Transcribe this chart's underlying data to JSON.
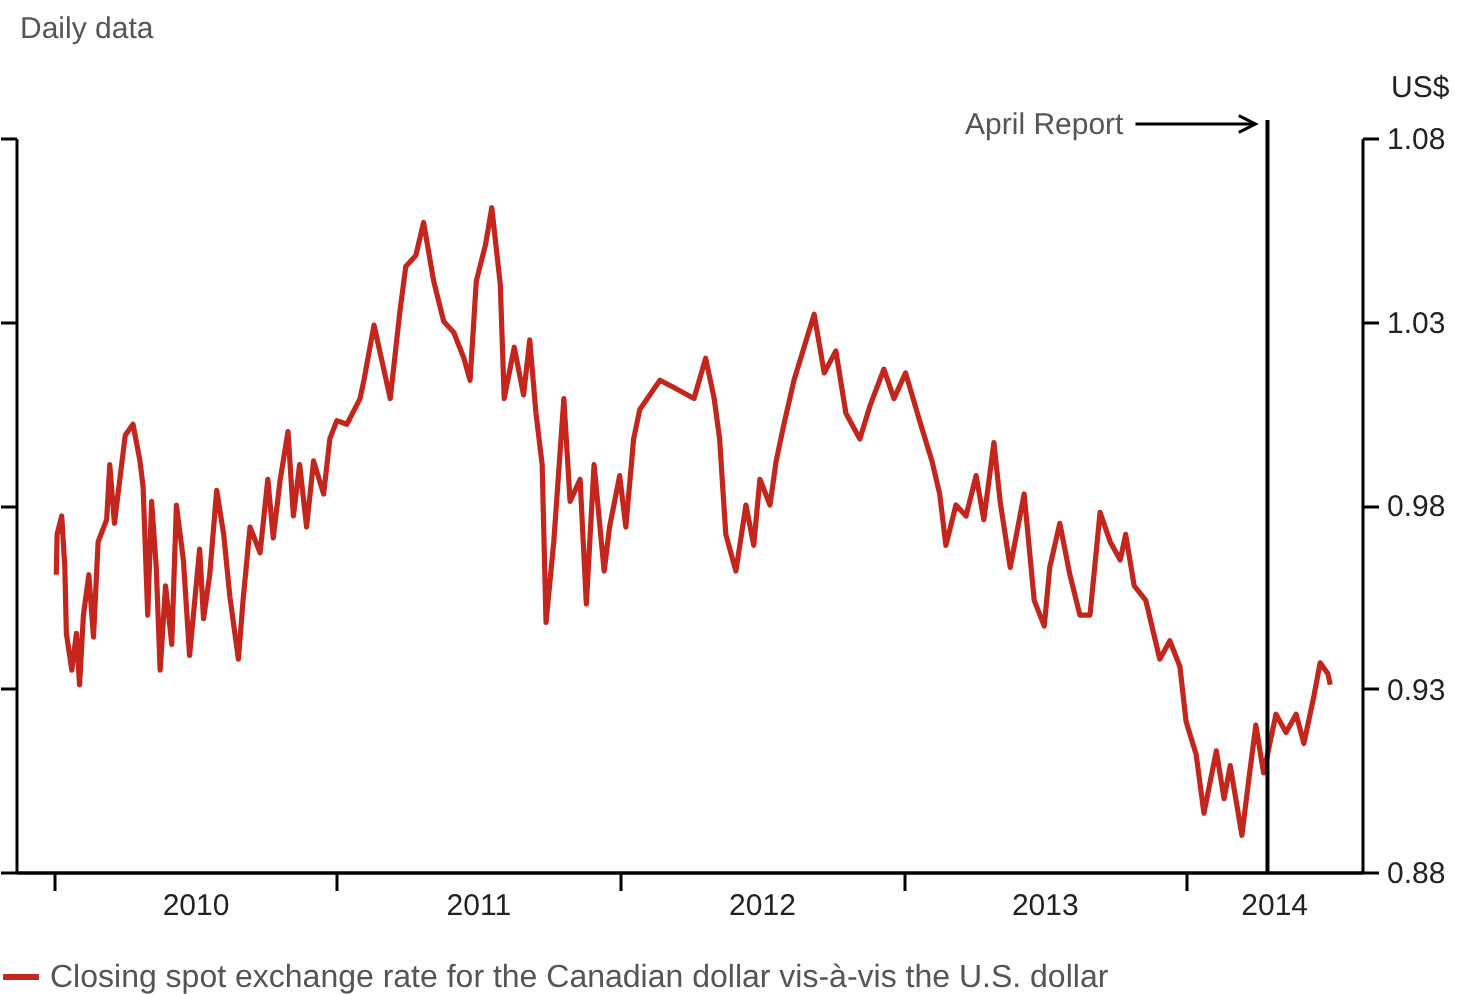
{
  "chart_data": {
    "type": "line",
    "subtitle": "Daily data",
    "ylabel": "US$",
    "x": [
      "2010-01-04",
      "2010-01-05",
      "2010-01-11",
      "2010-01-15",
      "2010-01-17",
      "2010-01-24",
      "2010-01-30",
      "2010-02-03",
      "2010-02-08",
      "2010-02-15",
      "2010-02-21",
      "2010-02-27",
      "2010-03-10",
      "2010-03-14",
      "2010-03-20",
      "2010-03-27",
      "2010-04-03",
      "2010-04-13",
      "2010-04-22",
      "2010-04-26",
      "2010-05-02",
      "2010-05-07",
      "2010-05-13",
      "2010-05-18",
      "2010-05-25",
      "2010-06-02",
      "2010-06-08",
      "2010-06-17",
      "2010-06-25",
      "2010-07-08",
      "2010-07-13",
      "2010-07-21",
      "2010-07-30",
      "2010-08-08",
      "2010-08-16",
      "2010-08-27",
      "2010-09-02",
      "2010-09-11",
      "2010-09-24",
      "2010-10-04",
      "2010-10-11",
      "2010-10-20",
      "2010-10-30",
      "2010-11-06",
      "2010-11-14",
      "2010-11-23",
      "2010-12-02",
      "2010-12-15",
      "2010-12-23",
      "2011-01-01",
      "2011-01-14",
      "2011-01-31",
      "2011-02-05",
      "2011-02-18",
      "2011-03-11",
      "2011-03-23",
      "2011-03-31",
      "2011-04-13",
      "2011-04-23",
      "2011-05-06",
      "2011-05-19",
      "2011-06-01",
      "2011-06-14",
      "2011-06-22",
      "2011-06-30",
      "2011-07-12",
      "2011-07-20",
      "2011-07-31",
      "2011-08-05",
      "2011-08-18",
      "2011-08-30",
      "2011-09-07",
      "2011-09-15",
      "2011-09-23",
      "2011-09-28",
      "2011-10-08",
      "2011-10-21",
      "2011-10-29",
      "2011-11-11",
      "2011-11-19",
      "2011-11-29",
      "2011-12-12",
      "2011-12-19",
      "2012-01-01",
      "2012-01-09",
      "2012-01-19",
      "2012-01-27",
      "2012-02-22",
      "2012-03-11",
      "2012-04-06",
      "2012-04-21",
      "2012-05-02",
      "2012-05-09",
      "2012-05-17",
      "2012-05-30",
      "2012-06-12",
      "2012-06-22",
      "2012-06-30",
      "2012-07-13",
      "2012-07-21",
      "2012-07-31",
      "2012-08-13",
      "2012-09-08",
      "2012-09-21",
      "2012-10-06",
      "2012-10-19",
      "2012-11-06",
      "2012-11-19",
      "2012-12-07",
      "2012-12-20",
      "2013-01-04",
      "2013-01-22",
      "2013-02-07",
      "2013-02-17",
      "2013-02-25",
      "2013-03-10",
      "2013-03-23",
      "2013-04-05",
      "2013-04-15",
      "2013-04-28",
      "2013-05-06",
      "2013-05-19",
      "2013-06-06",
      "2013-06-19",
      "2013-07-02",
      "2013-07-09",
      "2013-07-22",
      "2013-08-04",
      "2013-08-17",
      "2013-08-30",
      "2013-09-12",
      "2013-09-25",
      "2013-10-08",
      "2013-10-15",
      "2013-10-26",
      "2013-11-10",
      "2013-11-28",
      "2013-12-11",
      "2013-12-24",
      "2014-01-01",
      "2014-01-14",
      "2014-01-24",
      "2014-02-09",
      "2014-02-19",
      "2014-02-27",
      "2014-03-14",
      "2014-03-24",
      "2014-04-01",
      "2014-04-11",
      "2014-04-27",
      "2014-05-10",
      "2014-05-23",
      "2014-06-02",
      "2014-06-15",
      "2014-06-23",
      "2014-07-03",
      "2014-07-06"
    ],
    "series": [
      {
        "name": "Closing spot exchange rate for the Canadian dollar vis-à-vis the U.S. dollar",
        "color": "#c4261d",
        "values": [
          0.961,
          0.972,
          0.977,
          0.963,
          0.945,
          0.935,
          0.945,
          0.931,
          0.95,
          0.961,
          0.944,
          0.97,
          0.976,
          0.991,
          0.975,
          0.987,
          0.999,
          1.002,
          0.992,
          0.985,
          0.95,
          0.981,
          0.963,
          0.935,
          0.958,
          0.942,
          0.98,
          0.965,
          0.939,
          0.968,
          0.949,
          0.961,
          0.984,
          0.972,
          0.955,
          0.938,
          0.954,
          0.974,
          0.967,
          0.987,
          0.971,
          0.987,
          1.0,
          0.977,
          0.991,
          0.974,
          0.992,
          0.983,
          0.998,
          1.003,
          1.002,
          1.009,
          1.014,
          1.029,
          1.009,
          1.032,
          1.045,
          1.048,
          1.057,
          1.041,
          1.03,
          1.027,
          1.02,
          1.014,
          1.041,
          1.051,
          1.061,
          1.04,
          1.009,
          1.023,
          1.01,
          1.025,
          1.005,
          0.991,
          0.948,
          0.97,
          1.009,
          0.981,
          0.987,
          0.953,
          0.991,
          0.962,
          0.974,
          0.988,
          0.974,
          0.998,
          1.006,
          1.014,
          1.012,
          1.009,
          1.02,
          1.009,
          0.998,
          0.972,
          0.962,
          0.98,
          0.969,
          0.987,
          0.98,
          0.992,
          1.002,
          1.014,
          1.032,
          1.016,
          1.022,
          1.005,
          0.998,
          1.007,
          1.017,
          1.009,
          1.016,
          1.003,
          0.992,
          0.983,
          0.969,
          0.98,
          0.977,
          0.988,
          0.976,
          0.997,
          0.981,
          0.963,
          0.983,
          0.954,
          0.947,
          0.963,
          0.975,
          0.961,
          0.95,
          0.95,
          0.978,
          0.97,
          0.965,
          0.972,
          0.958,
          0.954,
          0.938,
          0.943,
          0.936,
          0.921,
          0.912,
          0.896,
          0.913,
          0.9,
          0.909,
          0.89,
          0.907,
          0.92,
          0.907,
          0.923,
          0.918,
          0.923,
          0.915,
          0.928,
          0.937,
          0.934,
          0.931
        ]
      }
    ],
    "xlim": [
      "2009-11-13",
      "2014-08-16"
    ],
    "xticks": [
      {
        "value": "2010-01-01",
        "label": null
      },
      {
        "value": "2010-07-02",
        "label": "2010"
      },
      {
        "value": "2011-01-01",
        "label": null
      },
      {
        "value": "2011-07-02",
        "label": "2011"
      },
      {
        "value": "2012-01-01",
        "label": null
      },
      {
        "value": "2012-07-02",
        "label": "2012"
      },
      {
        "value": "2013-01-01",
        "label": null
      },
      {
        "value": "2013-07-02",
        "label": "2013"
      },
      {
        "value": "2014-01-01",
        "label": null
      },
      {
        "value": "2014-04-24",
        "label": "2014"
      }
    ],
    "ylim": [
      0.88,
      1.08
    ],
    "yticks": [
      0.88,
      0.93,
      0.98,
      1.03,
      1.08
    ],
    "ref_lines": [
      {
        "axis": "x",
        "value": "2014-04-16",
        "label": "April Report",
        "color": "#000000"
      }
    ],
    "grid": false,
    "legend": "bottom",
    "marker": "none",
    "line_style": "solid"
  }
}
